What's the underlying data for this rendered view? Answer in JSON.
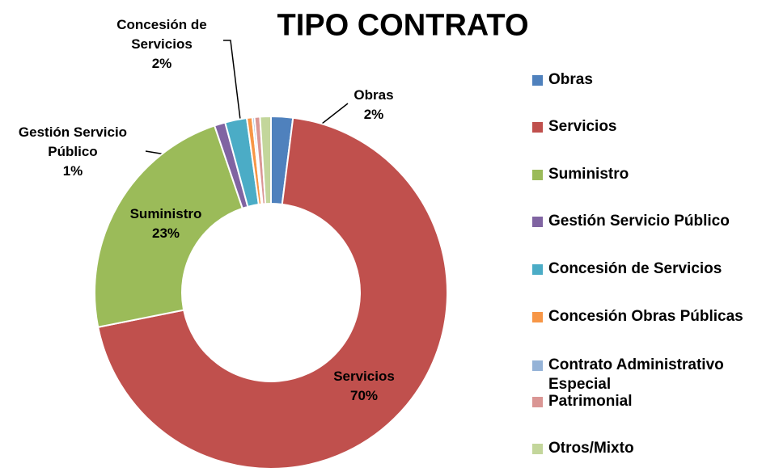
{
  "chart_data": {
    "type": "donut",
    "title": "TIPO CONTRATO",
    "categories": [
      "Obras",
      "Servicios",
      "Suministro",
      "Gestión Servicio Público",
      "Concesión de Servicios",
      "Concesión Obras Públicas",
      "Contrato Administrativo Especial",
      "Patrimonial",
      "Otros/Mixto"
    ],
    "values": [
      2,
      70,
      23,
      1,
      2,
      0.5,
      0.2,
      0.5,
      1
    ],
    "value_labels": [
      "2%",
      "70%",
      "23%",
      "1%",
      "2%",
      null,
      null,
      null,
      null
    ],
    "colors": [
      "#4f81bd",
      "#c0504d",
      "#9bbb59",
      "#8064a2",
      "#4bacc6",
      "#f79646",
      "#95b3d7",
      "#da9694",
      "#c3d69b"
    ],
    "legend": "right"
  }
}
